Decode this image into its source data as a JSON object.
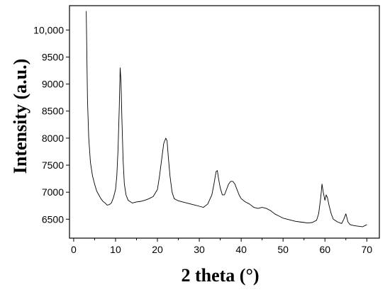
{
  "chart_data": {
    "type": "line",
    "title": "",
    "xlabel": "2 theta (°)",
    "ylabel": "Intensity (a.u.)",
    "xlim": [
      -1,
      73
    ],
    "ylim": [
      6150,
      10450
    ],
    "grid": false,
    "legend": "none",
    "x_ticks": [
      0,
      10,
      20,
      30,
      40,
      50,
      60,
      70
    ],
    "x_tick_labels": [
      "0",
      "10",
      "20",
      "30",
      "40",
      "50",
      "60",
      "70"
    ],
    "y_ticks": [
      6500,
      7000,
      7500,
      8000,
      8500,
      9000,
      9500,
      10000
    ],
    "y_tick_labels": [
      "6500",
      "7000",
      "7500",
      "8000",
      "8500",
      "9000",
      "9500",
      "10,000"
    ],
    "line_color": "#000000",
    "series": [
      {
        "x": [
          3.0,
          3.3,
          3.6,
          4.0,
          4.5,
          5.0,
          5.5,
          6.0,
          6.5,
          7.0,
          7.5,
          8.0,
          8.5,
          9.0,
          9.5,
          10.0,
          10.3,
          10.6,
          10.9,
          11.1,
          11.3,
          11.5,
          11.8,
          12.1,
          12.5,
          13.0,
          14.0,
          15.0,
          16.0,
          17.0,
          18.0,
          19.0,
          20.0,
          20.5,
          21.0,
          21.5,
          22.0,
          22.3,
          22.6,
          23.0,
          23.5,
          24.0,
          25.0,
          26.0,
          27.0,
          28.0,
          29.0,
          30.0,
          31.0,
          32.0,
          33.0,
          33.5,
          34.0,
          34.3,
          34.6,
          35.0,
          35.5,
          36.0,
          36.5,
          37.0,
          37.5,
          38.0,
          38.5,
          39.0,
          39.5,
          40.0,
          41.0,
          42.0,
          43.0,
          44.0,
          45.0,
          46.0,
          47.0,
          48.0,
          49.0,
          50.0,
          51.0,
          52.0,
          53.0,
          54.0,
          55.0,
          56.0,
          57.0,
          58.0,
          58.5,
          59.0,
          59.3,
          59.6,
          60.0,
          60.3,
          60.6,
          61.0,
          61.5,
          62.0,
          63.0,
          64.0,
          64.5,
          65.0,
          65.5,
          66.0,
          67.0,
          68.0,
          69.0,
          70.0
        ],
        "y": [
          10350,
          8700,
          8000,
          7550,
          7300,
          7150,
          7020,
          6950,
          6880,
          6830,
          6800,
          6760,
          6770,
          6800,
          6900,
          7050,
          7300,
          7800,
          8600,
          9300,
          9050,
          8400,
          7600,
          7150,
          6950,
          6850,
          6800,
          6820,
          6830,
          6850,
          6880,
          6920,
          7050,
          7300,
          7600,
          7900,
          8000,
          7950,
          7650,
          7300,
          7000,
          6880,
          6840,
          6820,
          6800,
          6780,
          6760,
          6740,
          6720,
          6780,
          6950,
          7150,
          7380,
          7400,
          7250,
          7080,
          6950,
          6950,
          7050,
          7150,
          7200,
          7200,
          7150,
          7050,
          6950,
          6880,
          6820,
          6780,
          6720,
          6700,
          6720,
          6700,
          6660,
          6600,
          6560,
          6520,
          6500,
          6480,
          6460,
          6450,
          6440,
          6430,
          6440,
          6480,
          6600,
          6900,
          7150,
          7000,
          6850,
          6950,
          6900,
          6750,
          6600,
          6500,
          6450,
          6420,
          6500,
          6600,
          6450,
          6400,
          6380,
          6370,
          6360,
          6400
        ]
      }
    ]
  }
}
